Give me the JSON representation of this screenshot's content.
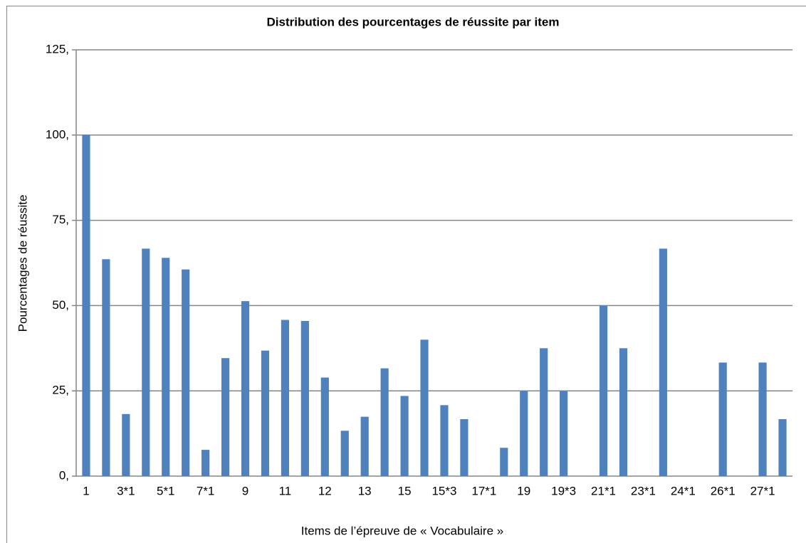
{
  "chart_data": {
    "type": "bar",
    "title": "Distribution des pourcentages de réussite par item",
    "x_label": "Items de l’épreuve de « Vocabulaire »",
    "y_label": "Pourcentages de réussite",
    "categories": [
      "1",
      null,
      "3*1",
      null,
      "5*1",
      null,
      "7*1",
      null,
      "9",
      null,
      "11",
      null,
      "12",
      null,
      "13",
      null,
      "15",
      null,
      "15*3",
      null,
      "17*1",
      null,
      "19",
      null,
      "19*3",
      null,
      "21*1",
      null,
      "23*1",
      null,
      "24*1",
      null,
      "26*1",
      null,
      "27*1",
      null
    ],
    "values": [
      100,
      63.6,
      18.2,
      66.7,
      64,
      60.6,
      7.7,
      34.6,
      51.3,
      36.8,
      45.8,
      45.5,
      28.9,
      13.3,
      17.4,
      31.6,
      23.5,
      40,
      20.8,
      16.7,
      0,
      8.3,
      25,
      37.5,
      25,
      0,
      50,
      37.5,
      0,
      66.7,
      0,
      0,
      33.3,
      0,
      33.3,
      16.7
    ],
    "color": "#4f81bd",
    "ylim": [
      0,
      125
    ],
    "yticks": [
      {
        "value": 0,
        "label": "0,"
      },
      {
        "value": 25,
        "label": "25,"
      },
      {
        "value": 50,
        "label": "50,"
      },
      {
        "value": 75,
        "label": "75,"
      },
      {
        "value": 100,
        "label": "100,"
      },
      {
        "value": 125,
        "label": "125,"
      }
    ],
    "grid": true
  }
}
